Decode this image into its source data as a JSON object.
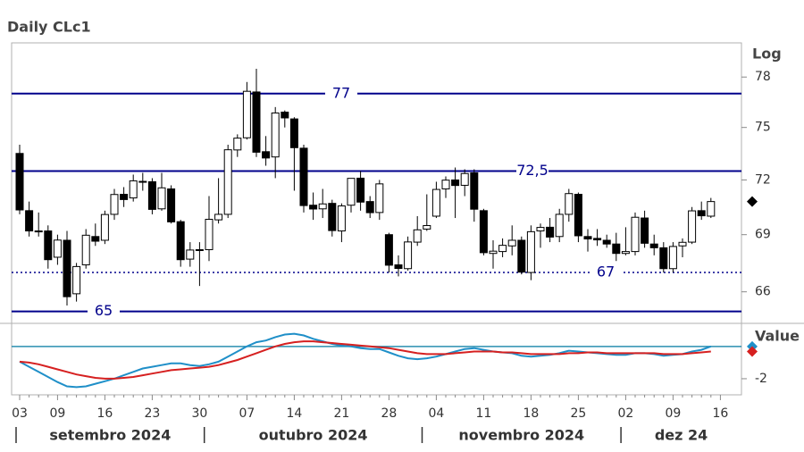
{
  "chart_data": [
    {
      "type": "candlestick",
      "title": "Daily CLc1",
      "y_label": "Log",
      "log_scale": true,
      "categories": [
        "03",
        null,
        null,
        null,
        "09",
        null,
        null,
        null,
        null,
        "16",
        null,
        null,
        null,
        null,
        "23",
        null,
        null,
        null,
        null,
        "30",
        null,
        null,
        null,
        null,
        "07",
        null,
        null,
        null,
        null,
        "14",
        null,
        null,
        null,
        null,
        "21",
        null,
        null,
        null,
        null,
        "28",
        null,
        null,
        null,
        null,
        "04",
        null,
        null,
        null,
        null,
        "11",
        null,
        null,
        null,
        null,
        "18",
        null,
        null,
        null,
        null,
        "25",
        null,
        null,
        null,
        null,
        "02",
        null,
        null,
        null,
        null,
        "09",
        null,
        null,
        null,
        null,
        "16"
      ],
      "open": [
        73.5,
        70.3,
        69.2,
        69.2,
        67.8,
        68.7,
        65.9,
        67.4,
        68.9,
        68.7,
        70.1,
        71.2,
        71.0,
        71.9,
        71.9,
        70.4,
        71.5,
        69.7,
        67.7,
        68.2,
        68.2,
        69.8,
        70.1,
        73.7,
        74.4,
        77.1,
        73.6,
        73.3,
        75.9,
        75.5,
        73.8,
        70.6,
        70.4,
        70.7,
        69.2,
        70.6,
        72.1,
        70.8,
        70.2,
        69.0,
        67.4,
        67.2,
        68.6,
        69.3,
        70.0,
        71.5,
        72.0,
        71.7,
        72.4,
        70.3,
        68.0,
        68.1,
        68.4,
        68.7,
        67.0,
        69.2,
        69.4,
        68.9,
        70.1,
        71.2,
        68.9,
        68.8,
        68.7,
        68.5,
        68.0,
        68.1,
        69.9,
        68.5,
        68.3,
        67.2,
        68.4,
        68.6,
        70.3,
        70.0,
        null
      ],
      "high": [
        74.0,
        70.8,
        70.2,
        69.5,
        69.0,
        69.2,
        67.5,
        69.3,
        69.6,
        70.3,
        71.5,
        71.6,
        72.3,
        72.4,
        72.1,
        72.4,
        71.7,
        69.8,
        68.6,
        68.6,
        71.1,
        72.1,
        74.0,
        74.6,
        77.7,
        78.5,
        74.5,
        76.2,
        76.0,
        75.6,
        74.0,
        71.3,
        71.5,
        70.9,
        70.7,
        72.1,
        72.5,
        71.1,
        72.0,
        69.1,
        67.9,
        68.9,
        70.0,
        71.2,
        71.9,
        72.2,
        72.7,
        72.6,
        72.6,
        70.4,
        68.7,
        68.8,
        69.5,
        68.9,
        69.5,
        69.6,
        69.9,
        70.4,
        71.5,
        71.3,
        69.3,
        69.3,
        69.0,
        69.1,
        69.4,
        70.2,
        70.3,
        69.0,
        68.6,
        68.6,
        68.8,
        70.5,
        70.8,
        71.0,
        null
      ],
      "low": [
        70.1,
        68.9,
        68.9,
        67.2,
        67.4,
        65.3,
        65.5,
        67.2,
        68.4,
        68.5,
        69.8,
        70.5,
        70.8,
        71.4,
        70.1,
        70.3,
        69.6,
        67.3,
        67.3,
        66.3,
        67.6,
        69.6,
        69.9,
        73.3,
        74.3,
        73.3,
        72.8,
        72.1,
        75.0,
        71.4,
        70.2,
        69.8,
        69.9,
        68.9,
        68.6,
        70.2,
        70.3,
        69.9,
        69.8,
        67.0,
        66.8,
        67.1,
        68.4,
        69.2,
        69.9,
        71.0,
        69.9,
        71.1,
        69.7,
        67.9,
        67.2,
        67.8,
        67.9,
        66.9,
        66.6,
        68.3,
        68.6,
        68.6,
        69.7,
        68.6,
        68.1,
        68.4,
        68.3,
        67.6,
        67.9,
        67.9,
        68.3,
        67.9,
        67.0,
        67.0,
        67.8,
        68.5,
        69.8,
        69.9,
        null
      ],
      "close": [
        70.34,
        69.2,
        69.15,
        67.67,
        68.71,
        65.75,
        67.31,
        68.97,
        68.65,
        70.09,
        71.19,
        70.91,
        71.95,
        71.92,
        70.37,
        71.56,
        69.69,
        67.67,
        68.18,
        68.17,
        69.83,
        70.1,
        73.71,
        74.38,
        77.14,
        73.57,
        73.24,
        75.85,
        75.56,
        73.83,
        70.58,
        70.39,
        70.67,
        69.22,
        70.56,
        72.09,
        70.77,
        70.19,
        71.78,
        67.38,
        67.21,
        68.61,
        69.26,
        69.49,
        71.47,
        71.99,
        71.69,
        72.36,
        70.38,
        68.04,
        68.12,
        68.43,
        68.7,
        67.02,
        69.16,
        69.39,
        68.87,
        70.1,
        71.24,
        68.94,
        68.77,
        68.72,
        68.5,
        68.0,
        68.1,
        69.94,
        68.54,
        68.3,
        67.2,
        68.37,
        68.59,
        70.29,
        70.02,
        70.8,
        null
      ],
      "ylim": [
        64.4,
        80.1
      ],
      "yticks": [
        66,
        69,
        72,
        75,
        78
      ],
      "colors": {
        "up": "#ffffff",
        "down": "#000000"
      },
      "reference_lines": [
        {
          "value": 77,
          "label": "77",
          "style": "solid",
          "color": "#00008b"
        },
        {
          "value": 72.5,
          "label": "72,5",
          "style": "solid",
          "color": "#00008b"
        },
        {
          "value": 67,
          "label": "67",
          "style": "dotted",
          "color": "#00008b"
        },
        {
          "value": 65,
          "label": "65",
          "style": "solid",
          "color": "#00008b"
        }
      ],
      "month_labels": [
        {
          "label": "setembro 2024",
          "start": 0
        },
        {
          "label": "outubro 2024",
          "start": 20
        },
        {
          "label": "novembro 2024",
          "start": 43
        },
        {
          "label": "dez 24",
          "start": 64
        }
      ]
    },
    {
      "type": "line",
      "y_label": "Value",
      "series": [
        {
          "color": "#1f8fc8",
          "values": [
            -1.0,
            -1.3,
            -1.6,
            -1.9,
            -2.2,
            -2.45,
            -2.5,
            -2.45,
            -2.3,
            -2.15,
            -2.0,
            -1.8,
            -1.6,
            -1.4,
            -1.3,
            -1.2,
            -1.1,
            -1.1,
            -1.2,
            -1.25,
            -1.15,
            -1.0,
            -0.7,
            -0.4,
            -0.1,
            0.15,
            0.25,
            0.45,
            0.6,
            0.65,
            0.55,
            0.35,
            0.2,
            0.05,
            -0.05,
            -0.1,
            -0.2,
            -0.25,
            -0.25,
            -0.45,
            -0.65,
            -0.8,
            -0.85,
            -0.8,
            -0.7,
            -0.55,
            -0.4,
            -0.25,
            -0.2,
            -0.3,
            -0.4,
            -0.45,
            -0.5,
            -0.65,
            -0.7,
            -0.65,
            -0.6,
            -0.5,
            -0.35,
            -0.4,
            -0.45,
            -0.5,
            -0.55,
            -0.6,
            -0.6,
            -0.5,
            -0.5,
            -0.55,
            -0.65,
            -0.6,
            -0.55,
            -0.4,
            -0.3,
            -0.1,
            null
          ]
        },
        {
          "color": "#d62020",
          "values": [
            -1.0,
            -1.05,
            -1.15,
            -1.3,
            -1.45,
            -1.6,
            -1.75,
            -1.85,
            -1.95,
            -2.0,
            -2.0,
            -1.95,
            -1.9,
            -1.8,
            -1.7,
            -1.6,
            -1.5,
            -1.45,
            -1.4,
            -1.35,
            -1.3,
            -1.2,
            -1.05,
            -0.9,
            -0.7,
            -0.5,
            -0.3,
            -0.1,
            0.05,
            0.15,
            0.2,
            0.2,
            0.15,
            0.1,
            0.05,
            0.0,
            -0.05,
            -0.1,
            -0.15,
            -0.2,
            -0.3,
            -0.4,
            -0.5,
            -0.55,
            -0.55,
            -0.55,
            -0.5,
            -0.45,
            -0.4,
            -0.4,
            -0.4,
            -0.45,
            -0.45,
            -0.5,
            -0.55,
            -0.55,
            -0.55,
            -0.55,
            -0.5,
            -0.5,
            -0.45,
            -0.45,
            -0.5,
            -0.5,
            -0.5,
            -0.5,
            -0.5,
            -0.5,
            -0.55,
            -0.55,
            -0.55,
            -0.5,
            -0.45,
            -0.4,
            null
          ]
        }
      ],
      "ylim": [
        -2.95,
        1.26
      ],
      "yticks": [
        -2
      ]
    }
  ]
}
